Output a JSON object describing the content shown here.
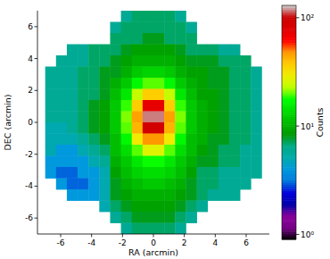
{
  "chart_data": {
    "type": "heatmap",
    "x_label": "RA (arcmin)",
    "y_label": "DEC (arcmin)",
    "xlim": [
      -7.5,
      7.5
    ],
    "ylim": [
      -7,
      7
    ],
    "xticks": [
      -6,
      -4,
      -2,
      0,
      2,
      4,
      6
    ],
    "yticks": [
      -6,
      -4,
      -2,
      0,
      2,
      4,
      6
    ],
    "x": [
      -6.65,
      -5.95,
      -5.25,
      -4.55,
      -3.85,
      -3.15,
      -2.45,
      -1.75,
      -1.05,
      -0.35,
      0.35,
      1.05,
      1.75,
      2.45,
      3.15,
      3.85,
      4.55,
      5.25,
      5.95,
      6.65
    ],
    "y": [
      6.65,
      5.95,
      5.25,
      4.55,
      3.85,
      3.15,
      2.45,
      1.75,
      1.05,
      0.35,
      -0.35,
      -1.05,
      -1.75,
      -2.45,
      -3.15,
      -3.85,
      -4.55,
      -5.25,
      -5.95,
      -6.65
    ],
    "values": [
      [
        null,
        null,
        null,
        null,
        null,
        null,
        null,
        6,
        7,
        7,
        7,
        7,
        6,
        null,
        null,
        null,
        null,
        null,
        null,
        null
      ],
      [
        null,
        null,
        null,
        null,
        null,
        null,
        6,
        7,
        7,
        7,
        7,
        7,
        7,
        6,
        null,
        null,
        null,
        null,
        null,
        null
      ],
      [
        null,
        null,
        null,
        null,
        null,
        null,
        7,
        7,
        7,
        8,
        8,
        7,
        7,
        7,
        null,
        null,
        null,
        null,
        null,
        null
      ],
      [
        null,
        null,
        6,
        6,
        7,
        7,
        7,
        8,
        9,
        9,
        9,
        9,
        8,
        7,
        7,
        7,
        6,
        6,
        null,
        null
      ],
      [
        null,
        6,
        6,
        6,
        7,
        7,
        8,
        9,
        10,
        10,
        10,
        10,
        9,
        8,
        8,
        8,
        7,
        7,
        7,
        null
      ],
      [
        6,
        6,
        6,
        7,
        7,
        8,
        8,
        10,
        12,
        13,
        13,
        12,
        10,
        9,
        9,
        8,
        8,
        7,
        7,
        6
      ],
      [
        6,
        6,
        6,
        7,
        7,
        8,
        10,
        12,
        17,
        20,
        20,
        17,
        12,
        10,
        9,
        8,
        8,
        7,
        7,
        6
      ],
      [
        6,
        6,
        6,
        7,
        7,
        8,
        11,
        15,
        24,
        37,
        37,
        24,
        15,
        11,
        9,
        9,
        8,
        7,
        7,
        6
      ],
      [
        6,
        6,
        6,
        7,
        8,
        9,
        12,
        19,
        37,
        73,
        73,
        37,
        19,
        12,
        10,
        9,
        8,
        7,
        7,
        6
      ],
      [
        6,
        6,
        6,
        7,
        8,
        9,
        12,
        21,
        46,
        118,
        118,
        46,
        21,
        12,
        10,
        9,
        8,
        7,
        7,
        6
      ],
      [
        5,
        5,
        6,
        7,
        8,
        9,
        12,
        20,
        42,
        93,
        93,
        42,
        20,
        12,
        10,
        9,
        8,
        7,
        7,
        6
      ],
      [
        5,
        5,
        5,
        6,
        7,
        8,
        11,
        17,
        30,
        48,
        48,
        30,
        17,
        11,
        10,
        8,
        8,
        7,
        7,
        6
      ],
      [
        5,
        4,
        4,
        5,
        6,
        7,
        11,
        14,
        20,
        27,
        27,
        20,
        14,
        11,
        9,
        8,
        7,
        7,
        6,
        6
      ],
      [
        4,
        4,
        4,
        4,
        5,
        6,
        10,
        12,
        15,
        18,
        18,
        15,
        12,
        10,
        8,
        8,
        7,
        7,
        6,
        6
      ],
      [
        4,
        3,
        3,
        4,
        4,
        5,
        9,
        11,
        13,
        14,
        14,
        13,
        11,
        9,
        7,
        7,
        6,
        6,
        6,
        6
      ],
      [
        null,
        4,
        3,
        3,
        4,
        5,
        8,
        10,
        11,
        12,
        12,
        11,
        10,
        8,
        7,
        7,
        6,
        6,
        6,
        null
      ],
      [
        null,
        null,
        4,
        4,
        4,
        5,
        8,
        9,
        10,
        10,
        10,
        10,
        9,
        8,
        7,
        6,
        6,
        6,
        null,
        null
      ],
      [
        null,
        null,
        null,
        null,
        null,
        5,
        7,
        8,
        9,
        9,
        9,
        9,
        8,
        7,
        6,
        null,
        null,
        null,
        null,
        null
      ],
      [
        null,
        null,
        null,
        null,
        null,
        null,
        6,
        7,
        8,
        8,
        8,
        8,
        7,
        6,
        null,
        null,
        null,
        null,
        null,
        null
      ],
      [
        null,
        null,
        null,
        null,
        null,
        null,
        null,
        6,
        7,
        7,
        7,
        7,
        6,
        null,
        null,
        null,
        null,
        null,
        null,
        null
      ]
    ],
    "colorbar": {
      "label": "Counts",
      "log": true,
      "range": [
        0.9,
        130
      ],
      "ticks": [
        {
          "value": 1,
          "label": "10⁰"
        },
        {
          "value": 10,
          "label": "10¹"
        },
        {
          "value": 100,
          "label": "10²"
        }
      ]
    }
  }
}
